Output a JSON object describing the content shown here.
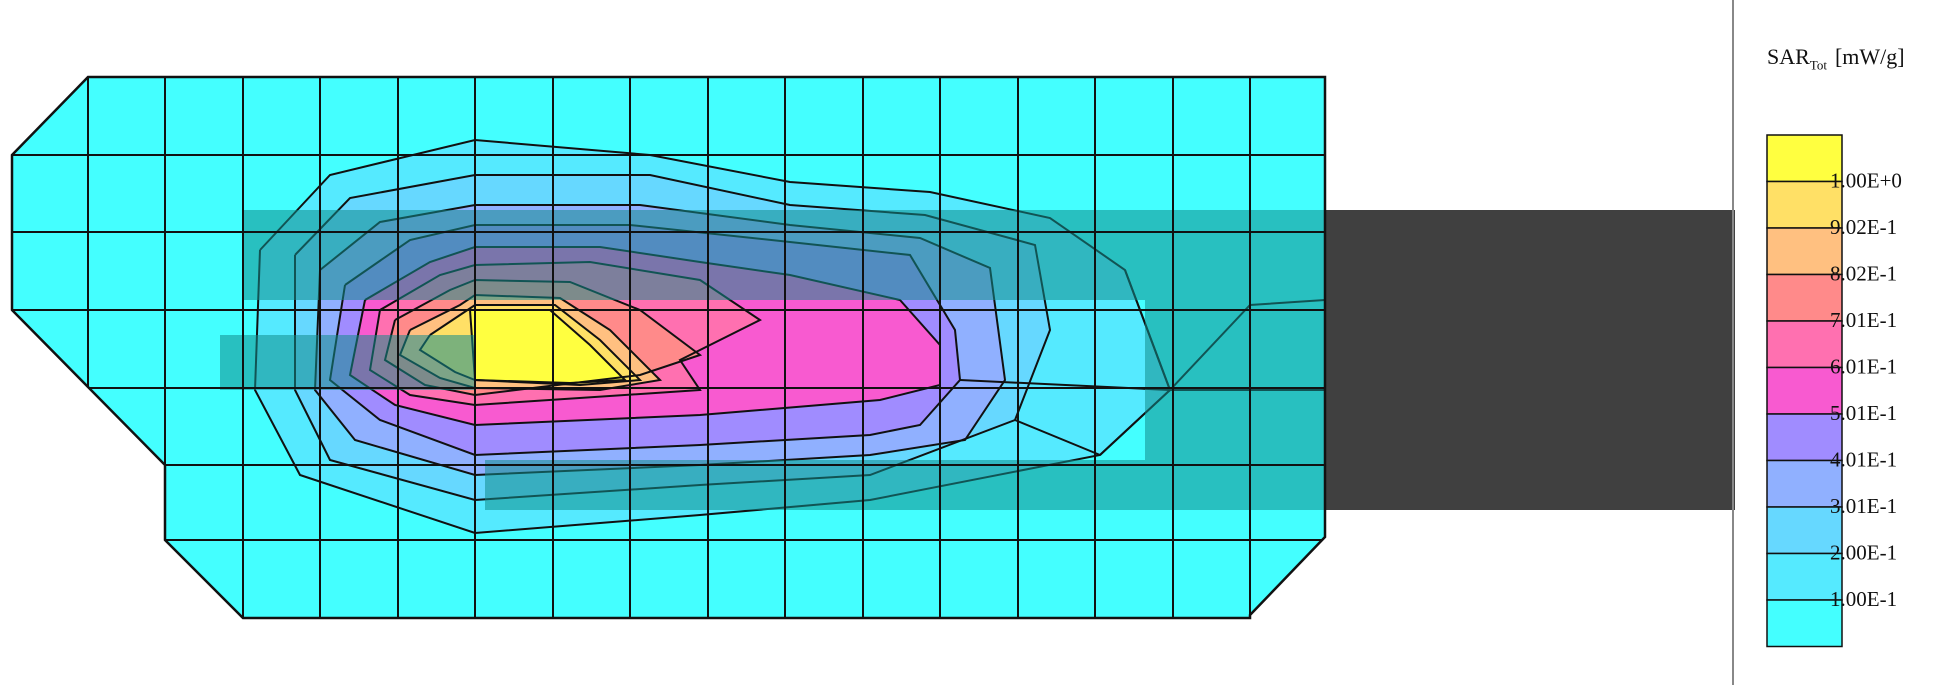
{
  "chart_data": {
    "type": "heatmap",
    "title": "",
    "legend": {
      "title_main": "SAR",
      "title_sub": "Tot",
      "unit": "[mW/g]",
      "placement": "right",
      "colors_top_to_bottom": [
        "#ffff40",
        "#ffe066",
        "#ffc080",
        "#ff8a8a",
        "#ff70b0",
        "#f85ad0",
        "#a08cff",
        "#90b0ff",
        "#66d8ff",
        "#55eaff",
        "#44ffff"
      ],
      "levels_top_to_bottom": [
        "1.00E+0",
        "9.02E-1",
        "8.02E-1",
        "7.01E-1",
        "6.01E-1",
        "5.01E-1",
        "4.01E-1",
        "3.01E-1",
        "2.00E-1",
        "1.00E-1"
      ],
      "level_values": [
        1.0,
        0.902,
        0.802,
        0.701,
        0.601,
        0.501,
        0.401,
        0.301,
        0.2,
        0.1
      ]
    },
    "peak_value": 1.0,
    "grid": true
  },
  "colors": {
    "background": "#44ffff",
    "outline": "#111111",
    "phantom": "#404040",
    "overlay": "#138c8c"
  }
}
